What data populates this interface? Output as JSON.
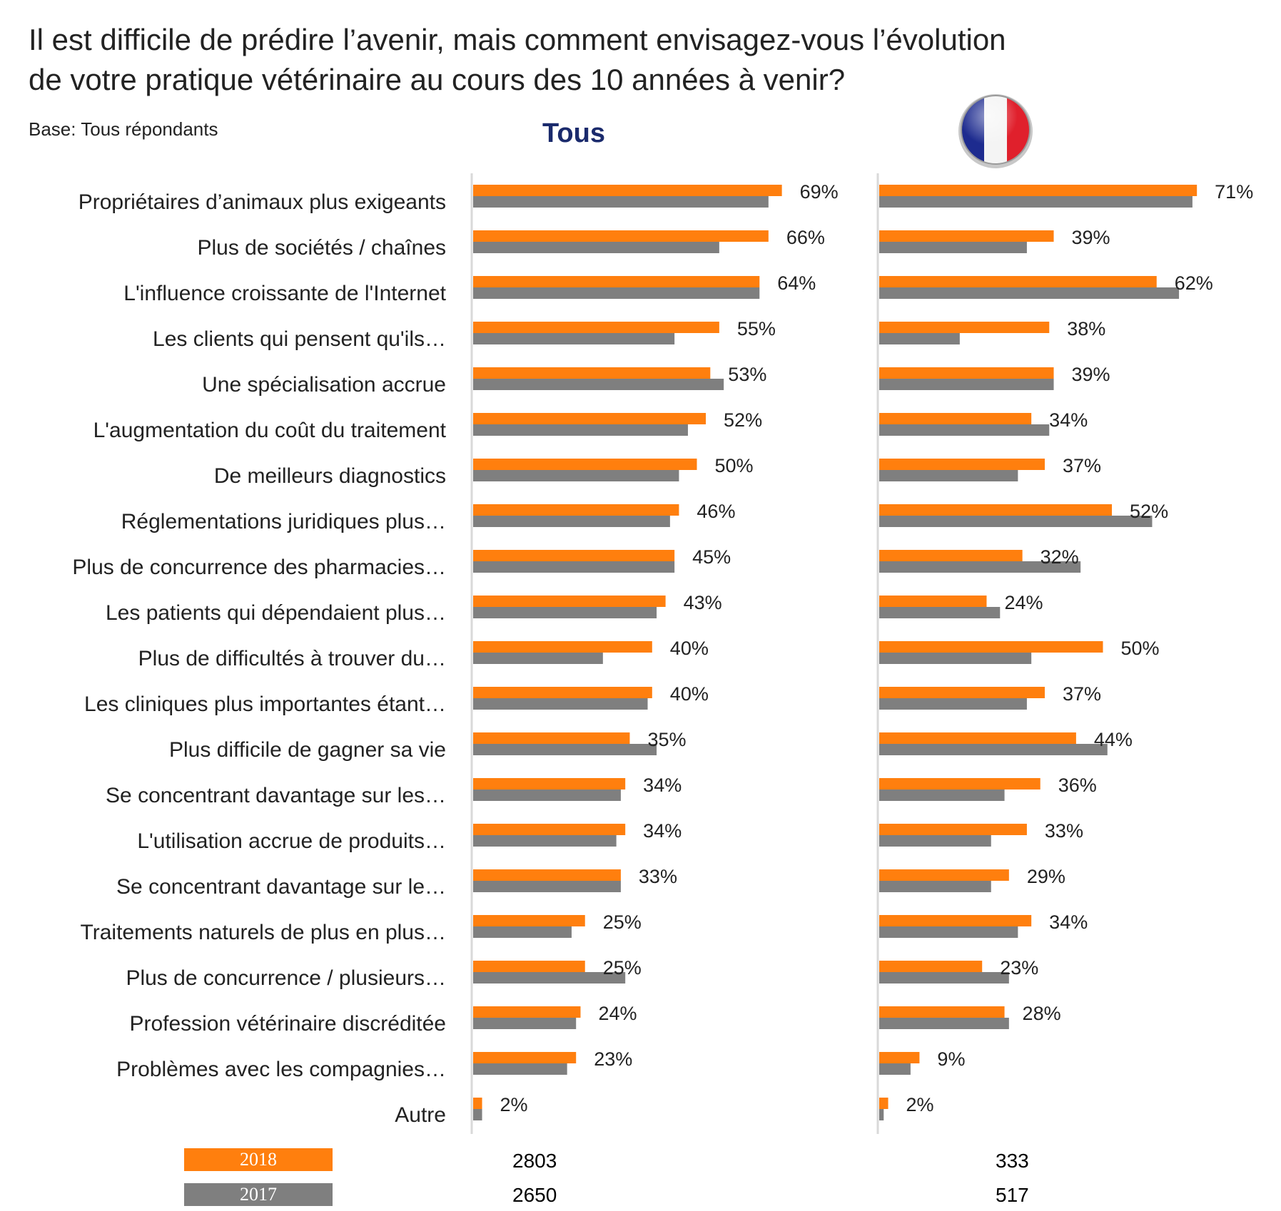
{
  "title": {
    "line1": "Il est difficile de prédire l’avenir, mais comment envisagez-vous l’évolution",
    "line2": "de votre pratique vétérinaire au cours des 10 années à venir?"
  },
  "subtitle": "Base: Tous répondants",
  "panels": {
    "all_title": "Tous",
    "france_flag_icon": "france-flag-icon"
  },
  "legend": {
    "2018": "2018",
    "2017": "2017"
  },
  "colors": {
    "2018": "#FF7F0E",
    "2017": "#7F7F7F",
    "axis": "#D9D9D9"
  },
  "bases": {
    "all_2018": "2803",
    "all_2017": "2650",
    "fr_2018": "333",
    "fr_2017": "517"
  },
  "chart_data": [
    {
      "type": "bar",
      "panel": "Tous",
      "orientation": "horizontal",
      "categories": [
        "Propriétaires d’animaux plus exigeants",
        "Plus de sociétés / chaînes",
        "L'influence croissante de l'Internet",
        "Les clients qui pensent qu'ils…",
        "Une spécialisation accrue",
        "L'augmentation du coût du traitement",
        "De meilleurs diagnostics",
        "Réglementations juridiques plus…",
        "Plus de concurrence des pharmacies…",
        "Les patients qui dépendaient plus…",
        "Plus de difficultés à trouver du…",
        "Les cliniques plus importantes étant…",
        "Plus difficile de gagner sa vie",
        "Se concentrant davantage sur les…",
        "L'utilisation accrue de produits…",
        "Se concentrant davantage sur le…",
        "Traitements naturels de plus en plus…",
        "Plus de concurrence / plusieurs…",
        "Profession vétérinaire discréditée",
        "Problèmes avec les compagnies…",
        "Autre"
      ],
      "series": [
        {
          "name": "2018",
          "values": [
            69,
            66,
            64,
            55,
            53,
            52,
            50,
            46,
            45,
            43,
            40,
            40,
            35,
            34,
            34,
            33,
            25,
            25,
            24,
            23,
            2
          ]
        },
        {
          "name": "2017",
          "values": [
            66,
            55,
            64,
            45,
            56,
            48,
            46,
            44,
            45,
            41,
            29,
            39,
            41,
            33,
            32,
            33,
            22,
            34,
            23,
            21,
            2
          ]
        }
      ],
      "data_labels": [
        "69%",
        "66%",
        "64%",
        "55%",
        "53%",
        "52%",
        "50%",
        "46%",
        "45%",
        "43%",
        "40%",
        "40%",
        "35%",
        "34%",
        "34%",
        "33%",
        "25%",
        "25%",
        "24%",
        "23%",
        "2%"
      ],
      "xlim": [
        0,
        80
      ]
    },
    {
      "type": "bar",
      "panel": "France",
      "orientation": "horizontal",
      "categories": [
        "Propriétaires d’animaux plus exigeants",
        "Plus de sociétés / chaînes",
        "L'influence croissante de l'Internet",
        "Les clients qui pensent qu'ils…",
        "Une spécialisation accrue",
        "L'augmentation du coût du traitement",
        "De meilleurs diagnostics",
        "Réglementations juridiques plus…",
        "Plus de concurrence des pharmacies…",
        "Les patients qui dépendaient plus…",
        "Plus de difficultés à trouver du…",
        "Les cliniques plus importantes étant…",
        "Plus difficile de gagner sa vie",
        "Se concentrant davantage sur les…",
        "L'utilisation accrue de produits…",
        "Se concentrant davantage sur le…",
        "Traitements naturels de plus en plus…",
        "Plus de concurrence / plusieurs…",
        "Profession vétérinaire discréditée",
        "Problèmes avec les compagnies…",
        "Autre"
      ],
      "series": [
        {
          "name": "2018",
          "values": [
            71,
            39,
            62,
            38,
            39,
            34,
            37,
            52,
            32,
            24,
            50,
            37,
            44,
            36,
            33,
            29,
            34,
            23,
            28,
            9,
            2
          ]
        },
        {
          "name": "2017",
          "values": [
            70,
            33,
            67,
            18,
            39,
            38,
            31,
            61,
            45,
            27,
            34,
            33,
            51,
            28,
            25,
            25,
            31,
            29,
            29,
            7,
            1
          ]
        }
      ],
      "data_labels": [
        "71%",
        "39%",
        "62%",
        "38%",
        "39%",
        "34%",
        "37%",
        "52%",
        "32%",
        "24%",
        "50%",
        "37%",
        "44%",
        "36%",
        "33%",
        "29%",
        "34%",
        "23%",
        "28%",
        "9%",
        "2%"
      ],
      "xlim": [
        0,
        80
      ]
    }
  ]
}
